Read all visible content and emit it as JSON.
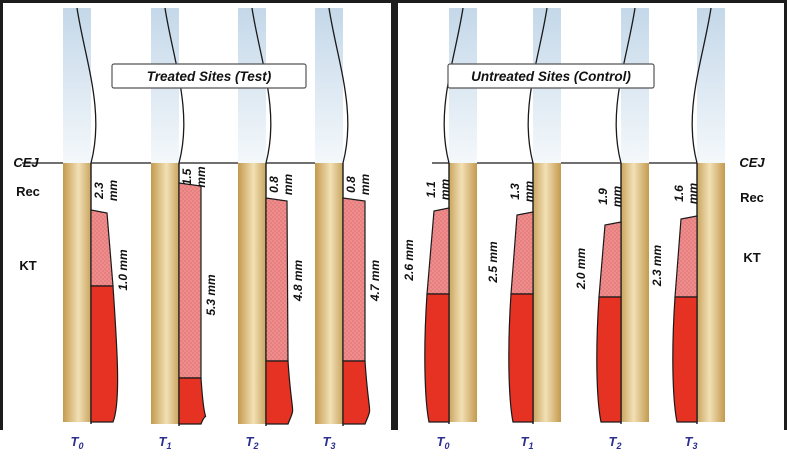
{
  "colors": {
    "frame": "#1c1c1c",
    "panel_bg": "#ffffff",
    "enamel": "#d3e3ef",
    "root": "#c9a560",
    "root_light": "#f1dfb3",
    "kt_attached": "#e53222",
    "kt_stippled": "#ee8a8a",
    "outline": "#1a1a1a",
    "time_label": "#2b2f8f"
  },
  "labels": {
    "cej": "CEJ",
    "rec": "Rec",
    "kt": "KT"
  },
  "panels": [
    {
      "title": "Treated Sites (Test)",
      "sites": [
        {
          "time": "T",
          "time_sub": "0",
          "rec_value": "2.3",
          "rec_unit": "mm",
          "kt_label": "1.0 mm"
        },
        {
          "time": "T",
          "time_sub": "1",
          "rec_value": "1.5",
          "rec_unit": "mm",
          "kt_label": "5.3 mm"
        },
        {
          "time": "T",
          "time_sub": "2",
          "rec_value": "0.8",
          "rec_unit": "mm",
          "kt_label": "4.8 mm"
        },
        {
          "time": "T",
          "time_sub": "3",
          "rec_value": "0.8",
          "rec_unit": "mm",
          "kt_label": "4.7 mm"
        }
      ]
    },
    {
      "title": "Untreated Sites (Control)",
      "sites": [
        {
          "time": "T",
          "time_sub": "0",
          "rec_value": "1.1",
          "rec_unit": "mm",
          "kt_label": "2.6 mm"
        },
        {
          "time": "T",
          "time_sub": "1",
          "rec_value": "1.3",
          "rec_unit": "mm",
          "kt_label": "2.5 mm"
        },
        {
          "time": "T",
          "time_sub": "2",
          "rec_value": "1.9",
          "rec_unit": "mm",
          "kt_label": "2.0 mm"
        },
        {
          "time": "T",
          "time_sub": "3",
          "rec_value": "1.6",
          "rec_unit": "mm",
          "kt_label": "2.3 mm"
        }
      ]
    }
  ]
}
